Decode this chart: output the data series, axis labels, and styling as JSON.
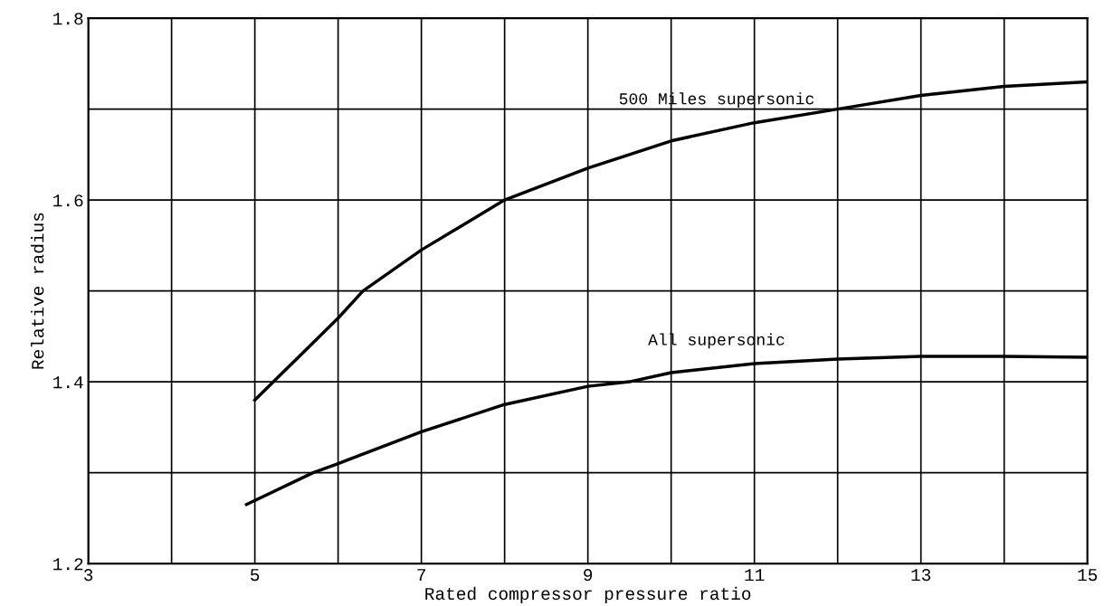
{
  "chart_data": {
    "type": "line",
    "xlabel": "Rated compressor pressure ratio",
    "ylabel": "Relative radius",
    "xlim": [
      3,
      15
    ],
    "ylim": [
      1.2,
      1.8
    ],
    "xticks": [
      3,
      {
        "value": 4,
        "label": null
      },
      5,
      {
        "value": 6,
        "label": null
      },
      7,
      {
        "value": 8,
        "label": null
      },
      9,
      {
        "value": 10,
        "label": null
      },
      11,
      {
        "value": 12,
        "label": null
      },
      13,
      {
        "value": 14,
        "label": null
      },
      15
    ],
    "yticks": [
      1.2,
      {
        "value": 1.3,
        "label": null
      },
      1.4,
      {
        "value": 1.5,
        "label": null
      },
      1.6,
      {
        "value": 1.7,
        "label": null
      },
      1.8
    ],
    "grid": true,
    "line_style": "solid",
    "marker": "none",
    "series": [
      {
        "name": "500 Miles supersonic",
        "color": "#000000",
        "x": [
          5,
          6,
          6.3,
          7,
          8,
          9,
          10,
          11,
          12,
          13,
          14,
          15
        ],
        "values": [
          1.38,
          1.47,
          1.5,
          1.545,
          1.6,
          1.635,
          1.665,
          1.685,
          1.7,
          1.715,
          1.725,
          1.73
        ]
      },
      {
        "name": "All supersonic",
        "color": "#000000",
        "x": [
          4.9,
          5.7,
          6,
          7,
          8,
          9,
          9.5,
          10,
          11,
          12,
          13,
          14,
          15
        ],
        "values": [
          1.265,
          1.3,
          1.31,
          1.345,
          1.375,
          1.395,
          1.4,
          1.41,
          1.42,
          1.425,
          1.428,
          1.428,
          1.427
        ]
      }
    ]
  }
}
